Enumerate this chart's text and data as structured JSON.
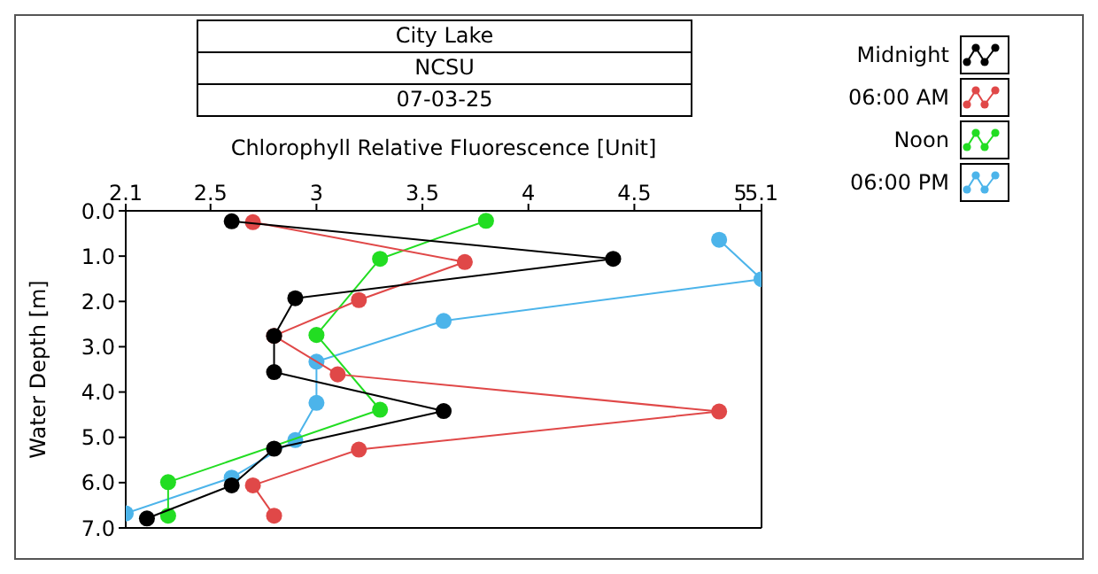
{
  "chart_data": {
    "type": "line",
    "title": "City Lake",
    "subtitle": "NCSU",
    "annotations": [
      "07-03-25"
    ],
    "xlabel": "Chlorophyll Relative Fluorescence [Unit]",
    "ylabel": "Water Depth [m]",
    "xlim": [
      2.1,
      5.1
    ],
    "xticks": [
      2.1,
      2.5,
      3,
      3.5,
      4,
      4.5,
      5,
      5.1
    ],
    "ylim": [
      7,
      0
    ],
    "yticks": [
      {
        "value": 0,
        "label": "0.0"
      },
      {
        "value": 1,
        "label": "1.0"
      },
      {
        "value": 2,
        "label": "2.0"
      },
      {
        "value": 3,
        "label": "3.0"
      },
      {
        "value": 4,
        "label": "4.0"
      },
      {
        "value": 5,
        "label": "5.0"
      },
      {
        "value": 6,
        "label": "6.0"
      },
      {
        "value": 7,
        "label": "7.0"
      }
    ],
    "legend": "top right",
    "marker": "circle",
    "line_style": "solid",
    "series": [
      {
        "name": "Midnight",
        "color": "#000000",
        "x": [
          2.6,
          4.4,
          2.9,
          2.8,
          2.8,
          3.6,
          2.8,
          2.6,
          2.2
        ],
        "values": [
          0.23,
          1.06,
          1.93,
          2.76,
          3.56,
          4.42,
          5.25,
          6.06,
          6.79
        ]
      },
      {
        "name": "06:00 AM",
        "color": "#e04848",
        "x": [
          2.7,
          3.7,
          3.2,
          2.8,
          3.1,
          4.9,
          3.2,
          2.7,
          2.8
        ],
        "values": [
          0.25,
          1.13,
          1.97,
          2.76,
          3.61,
          4.43,
          5.27,
          6.06,
          6.73
        ]
      },
      {
        "name": "Noon",
        "color": "#22dd22",
        "x": [
          3.8,
          3.3,
          3.0,
          3.3,
          2.3,
          2.3
        ],
        "values": [
          0.22,
          1.06,
          2.74,
          4.39,
          5.99,
          6.73
        ]
      },
      {
        "name": "06:00 PM",
        "color": "#4cb4ea",
        "x": [
          4.9,
          5.1,
          3.6,
          3.0,
          3.0,
          2.9,
          2.6,
          2.1
        ],
        "values": [
          0.64,
          1.51,
          2.43,
          3.33,
          4.24,
          5.06,
          5.89,
          6.68
        ]
      }
    ]
  }
}
